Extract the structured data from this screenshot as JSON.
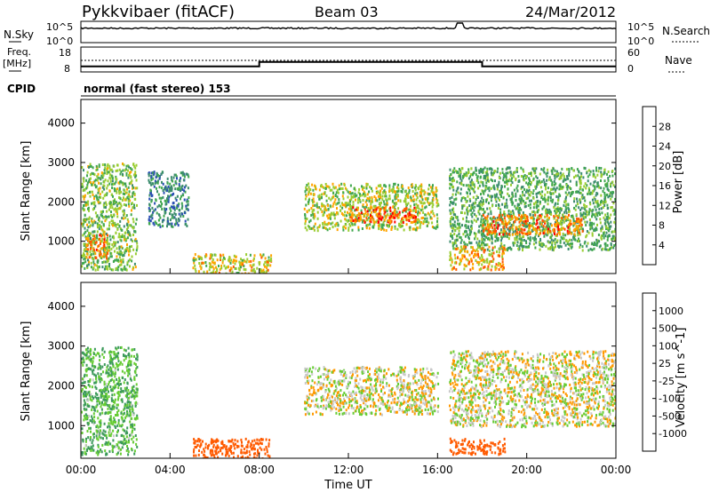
{
  "header": {
    "station": "Pykkvibaer (fitACF)",
    "beam": "Beam 03",
    "date": "24/Mar/2012"
  },
  "noise_panel": {
    "left_label": "N.Sky",
    "right_label": "N.Search",
    "left_ticks": [
      "10^5",
      "10^0"
    ],
    "right_ticks": [
      "10^5",
      "10^0"
    ]
  },
  "freq_panel": {
    "left_label_1": "Freq.",
    "left_label_2": "[MHz]",
    "right_label": "Nave",
    "left_ticks": [
      "18",
      "8"
    ],
    "right_ticks": [
      "60",
      "0"
    ]
  },
  "cpid": {
    "label": "CPID",
    "value": "normal (fast stereo) 153"
  },
  "power_panel": {
    "ylabel": "Slant Range [km]",
    "yticks": [
      "4000",
      "3000",
      "2000",
      "1000"
    ],
    "colorbar_label": "Power [dB]",
    "colorbar_ticks": [
      "28",
      "24",
      "20",
      "16",
      "12",
      "8",
      "4"
    ],
    "colorbar_colors": [
      "#0000ff",
      "#2a4fb3",
      "#3c8c6e",
      "#41a74f",
      "#9acd32",
      "#ffa500",
      "#ff5a00",
      "#ff0000"
    ]
  },
  "velocity_panel": {
    "ylabel": "Slant Range [km]",
    "yticks": [
      "4000",
      "3000",
      "2000",
      "1000"
    ],
    "colorbar_label": "Velocity [m s^-1]",
    "colorbar_ticks": [
      "1000",
      "500",
      "100",
      "25",
      "-25",
      "-100",
      "-500",
      "-1000"
    ],
    "colorbar_colors": [
      "#ff0000",
      "#ff5a00",
      "#ff9900",
      "#ffcc33",
      "#c8c8c8",
      "#66cc33",
      "#3c9a5a",
      "#2a6aa8",
      "#1a3fb0"
    ]
  },
  "xaxis": {
    "label": "Time UT",
    "ticks": [
      "00:00",
      "04:00",
      "08:00",
      "12:00",
      "16:00",
      "20:00",
      "00:00"
    ]
  },
  "chart_data": {
    "type": "heatmap",
    "title": "Pykkvibaer (fitACF)",
    "xlabel": "Time UT",
    "ylabel": "Slant Range [km]",
    "xlim_hours": [
      0,
      24
    ],
    "ylim_km": [
      180,
      4600
    ],
    "frequency_steps": [
      {
        "t_start": 0,
        "t_end": 8.0,
        "freq_MHz": 10.2
      },
      {
        "t_start": 8.0,
        "t_end": 18.0,
        "freq_MHz": 12.0
      },
      {
        "t_start": 18.0,
        "t_end": 24.0,
        "freq_MHz": 10.2
      }
    ],
    "power_regions": [
      {
        "t0": 0.0,
        "t1": 2.5,
        "r0": 300,
        "r1": 3000,
        "power_dB": 16
      },
      {
        "t0": 0.2,
        "t1": 1.2,
        "r0": 600,
        "r1": 1200,
        "power_dB": 24
      },
      {
        "t0": 3.0,
        "t1": 4.8,
        "r0": 1400,
        "r1": 2800,
        "power_dB": 10
      },
      {
        "t0": 5.0,
        "t1": 8.5,
        "r0": 200,
        "r1": 700,
        "power_dB": 20
      },
      {
        "t0": 10.0,
        "t1": 16.0,
        "r0": 1300,
        "r1": 2500,
        "power_dB": 18
      },
      {
        "t0": 12.0,
        "t1": 15.0,
        "r0": 1500,
        "r1": 1900,
        "power_dB": 26
      },
      {
        "t0": 16.5,
        "t1": 24.0,
        "r0": 800,
        "r1": 2900,
        "power_dB": 14
      },
      {
        "t0": 18.0,
        "t1": 22.5,
        "r0": 1200,
        "r1": 1700,
        "power_dB": 24
      },
      {
        "t0": 16.5,
        "t1": 19.0,
        "r0": 300,
        "r1": 900,
        "power_dB": 22
      }
    ],
    "velocity_regions": [
      {
        "t0": 0.0,
        "t1": 2.5,
        "r0": 300,
        "r1": 3000,
        "velocity": 100
      },
      {
        "t0": 5.0,
        "t1": 8.5,
        "r0": 200,
        "r1": 700,
        "velocity": -300
      },
      {
        "t0": 10.0,
        "t1": 16.0,
        "r0": 1300,
        "r1": 2500,
        "velocity": 0
      },
      {
        "t0": 16.5,
        "t1": 24.0,
        "r0": 1000,
        "r1": 2900,
        "velocity": 0
      },
      {
        "t0": 16.5,
        "t1": 19.0,
        "r0": 300,
        "r1": 700,
        "velocity": -300
      }
    ]
  }
}
